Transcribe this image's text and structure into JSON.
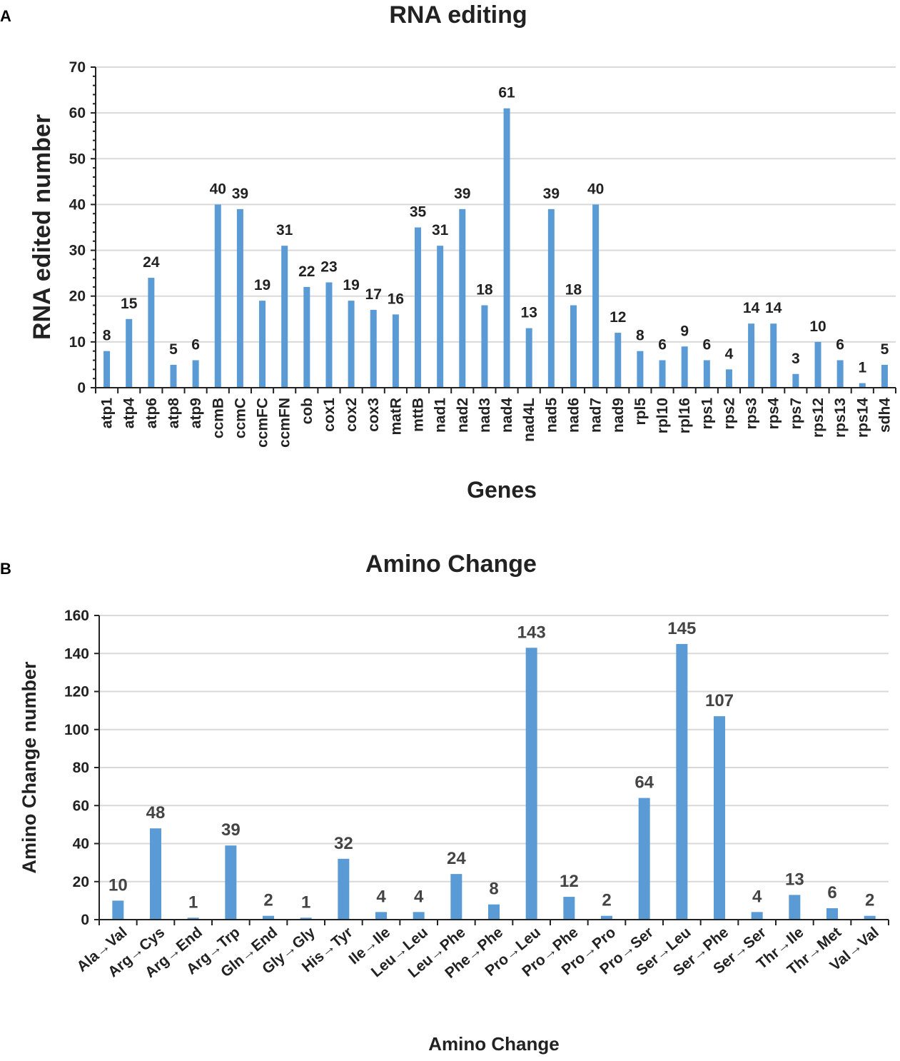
{
  "chart_data": [
    {
      "panel": "A",
      "type": "bar",
      "title": "RNA editing",
      "xlabel": "Genes",
      "ylabel": "RNA edited number",
      "ylim": [
        0,
        70
      ],
      "yticks": [
        0,
        10,
        20,
        30,
        40,
        50,
        60,
        70
      ],
      "grid": true,
      "categories": [
        "atp1",
        "atp4",
        "atp6",
        "atp8",
        "atp9",
        "ccmB",
        "ccmC",
        "ccmFC",
        "ccmFN",
        "cob",
        "cox1",
        "cox2",
        "cox3",
        "matR",
        "mttB",
        "nad1",
        "nad2",
        "nad3",
        "nad4",
        "nad4L",
        "nad5",
        "nad6",
        "nad7",
        "nad9",
        "rpl5",
        "rpl10",
        "rpl16",
        "rps1",
        "rps2",
        "rps3",
        "rps4",
        "rps7",
        "rps12",
        "rps13",
        "rps14",
        "sdh4"
      ],
      "values": [
        8,
        15,
        24,
        5,
        6,
        40,
        39,
        19,
        31,
        22,
        23,
        19,
        17,
        16,
        35,
        31,
        39,
        18,
        61,
        13,
        39,
        18,
        40,
        12,
        8,
        6,
        9,
        6,
        4,
        14,
        14,
        3,
        10,
        6,
        1,
        5
      ],
      "color": "#5b9bd5"
    },
    {
      "panel": "B",
      "type": "bar",
      "title": "Amino Change",
      "xlabel": "Amino Change",
      "ylabel": "Amino Change number",
      "ylim": [
        0,
        160
      ],
      "yticks": [
        0,
        20,
        40,
        60,
        80,
        100,
        120,
        140,
        160
      ],
      "grid": true,
      "categories": [
        "Ala→Val",
        "Arg→Cys",
        "Arg→End",
        "Arg→Trp",
        "Gln→End",
        "Gly→Gly",
        "His→Tyr",
        "Ile→Ile",
        "Leu→Leu",
        "Leu→Phe",
        "Phe→Phe",
        "Pro→Leu",
        "Pro→Phe",
        "Pro→Pro",
        "Pro→Ser",
        "Ser→Leu",
        "Ser→Phe",
        "Ser→Ser",
        "Thr→Ile",
        "Thr→Met",
        "Val→Val"
      ],
      "values": [
        10,
        48,
        1,
        39,
        2,
        1,
        32,
        4,
        4,
        24,
        8,
        143,
        12,
        2,
        64,
        145,
        107,
        4,
        13,
        6,
        2
      ],
      "color": "#5b9bd5"
    }
  ]
}
